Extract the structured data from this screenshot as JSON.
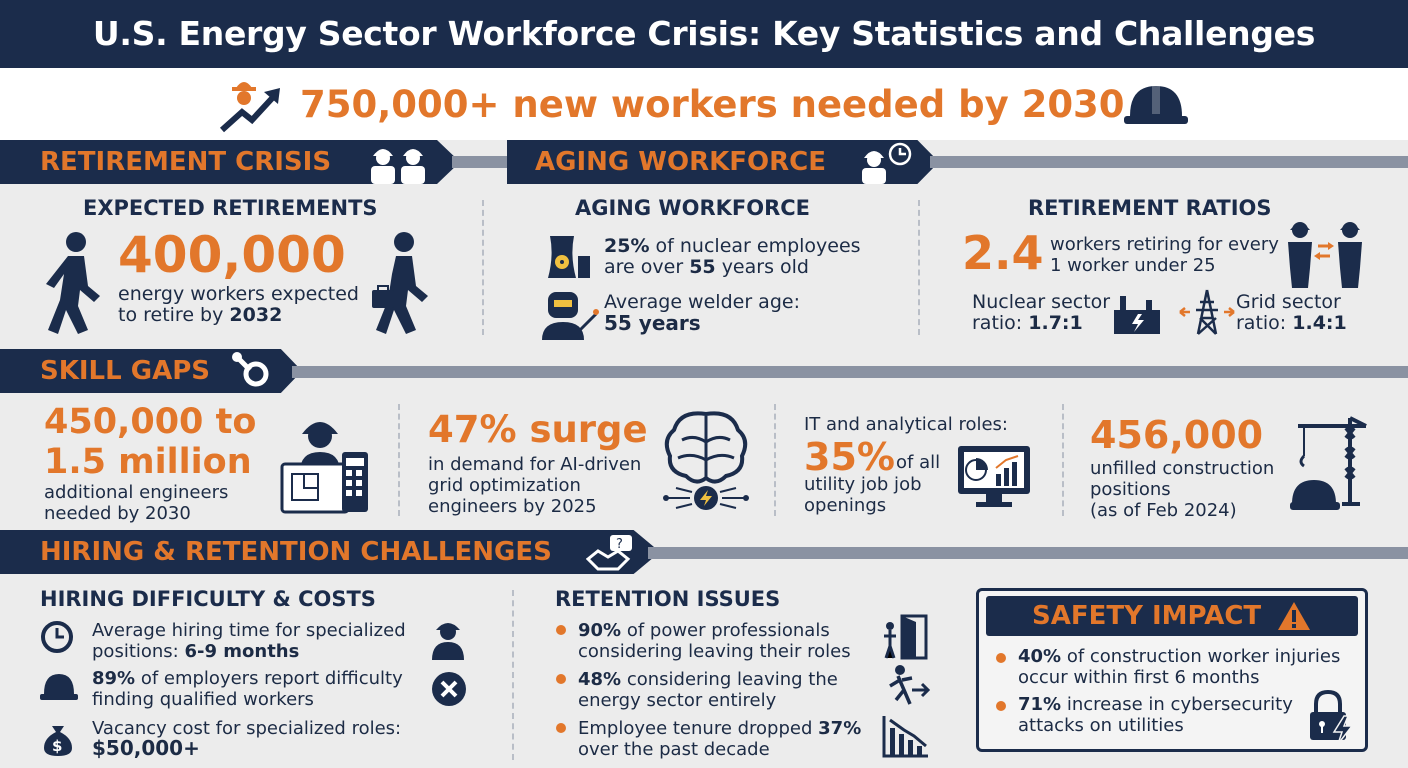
{
  "title": "U.S. Energy Sector Workforce Crisis: Key Statistics and Challenges",
  "headline": "750,000+ new workers needed by 2030",
  "retirement": {
    "section_label": "RETIREMENT CRISIS",
    "heading": "EXPECTED RETIREMENTS",
    "value": "400,000",
    "desc": "energy workers expected to retire by",
    "desc_strong": "2032"
  },
  "aging": {
    "section_label": "AGING WORKFORCE",
    "heading": "AGING WORKFORCE",
    "nuclear_pct": "25%",
    "nuclear_text": "of nuclear employees are over",
    "nuclear_age": "55",
    "nuclear_tail": "years old",
    "welder_text": "Average welder age:",
    "welder_age": "55 years"
  },
  "ratios": {
    "heading": "RETIREMENT RATIOS",
    "value": "2.4",
    "desc": "workers retiring for every 1 worker under 25",
    "nuclear_label": "Nuclear sector ratio:",
    "nuclear_value": "1.7:1",
    "grid_label": "Grid sector ratio:",
    "grid_value": "1.4:1"
  },
  "skills": {
    "section_label": "SKILL GAPS",
    "engineers_value_1": "450,000 to",
    "engineers_value_2": "1.5 million",
    "engineers_desc": "additional engineers needed by 2030",
    "ai_value": "47% surge",
    "ai_desc": "in demand for AI-driven grid optimization engineers by 2025",
    "it_label": "IT and analytical roles:",
    "it_value": "35%",
    "it_desc_1": "of all",
    "it_desc_2": "utility job job openings",
    "construction_value": "456,000",
    "construction_desc": "unfilled construction positions",
    "construction_note": "(as of Feb 2024)"
  },
  "hiring": {
    "section_label": "HIRING & RETENTION CHALLENGES",
    "heading": "HIRING DIFFICULTY & COSTS",
    "time_text": "Average hiring time for specialized positions:",
    "time_value": "6-9 months",
    "difficulty_pct": "89%",
    "difficulty_text": "of employers report difficulty finding qualified workers",
    "vacancy_text": "Vacancy cost for specialized roles:",
    "vacancy_value": "$50,000+"
  },
  "retention": {
    "heading": "RETENTION ISSUES",
    "items": [
      {
        "pct": "90%",
        "text": "of power professionals considering leaving their roles"
      },
      {
        "pct": "48%",
        "text": "considering leaving the energy sector entirely"
      }
    ],
    "tenure_text": "Employee tenure dropped",
    "tenure_pct": "37%",
    "tenure_tail": "over the past decade"
  },
  "safety": {
    "heading": "SAFETY IMPACT",
    "items": [
      {
        "pct": "40%",
        "text": "of construction worker injuries occur within first 6 months"
      },
      {
        "pct": "71%",
        "text": "increase in cybersecurity attacks on utilities"
      }
    ]
  },
  "colors": {
    "navy": "#1b2c4b",
    "orange": "#e2772b",
    "background": "#ececec"
  }
}
